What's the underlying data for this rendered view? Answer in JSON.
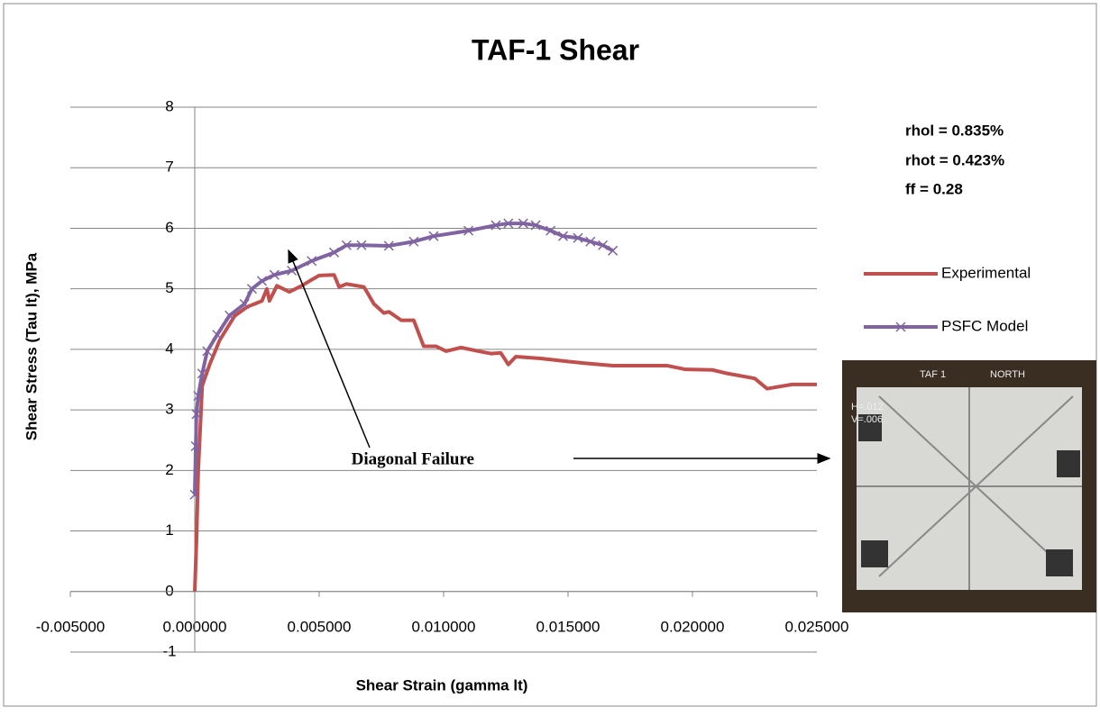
{
  "chart_data": {
    "type": "line",
    "title": "TAF-1  Shear",
    "x_label": "Shear Strain (gamma lt)",
    "y_label": "Shear Stress (Tau lt), MPa",
    "xlim": [
      -0.005,
      0.025
    ],
    "ylim": [
      -1,
      8
    ],
    "xticks": [
      {
        "value": -0.005,
        "label": "-0.005000"
      },
      {
        "value": 0,
        "label": "0.000000"
      },
      {
        "value": 0.005,
        "label": "0.005000"
      },
      {
        "value": 0.01,
        "label": "0.010000"
      },
      {
        "value": 0.015,
        "label": "0.015000"
      },
      {
        "value": 0.02,
        "label": "0.020000"
      },
      {
        "value": 0.025,
        "label": "0.025000"
      }
    ],
    "yticks": [
      -1,
      0,
      1,
      2,
      3,
      4,
      5,
      6,
      7,
      8
    ],
    "grid": true,
    "legend": "right",
    "series": [
      {
        "name": "Experimental",
        "color": "#c0504d",
        "marker": "none",
        "x": [
          0,
          7e-05,
          0.00014,
          0.0003,
          0.0006,
          0.001,
          0.0016,
          0.0021,
          0.0024,
          0.0027,
          0.0029,
          0.003,
          0.0033,
          0.0038,
          0.0043,
          0.0047,
          0.005,
          0.0056,
          0.0058,
          0.0061,
          0.0068,
          0.0072,
          0.0076,
          0.0078,
          0.0083,
          0.0088,
          0.0092,
          0.0097,
          0.0101,
          0.0107,
          0.0114,
          0.0119,
          0.0123,
          0.0126,
          0.0129,
          0.0139,
          0.015,
          0.0157,
          0.0168,
          0.019,
          0.0197,
          0.0208,
          0.0213,
          0.0225,
          0.023,
          0.024,
          0.025
        ],
        "values": [
          0,
          0.85,
          2.0,
          3.4,
          3.75,
          4.15,
          4.55,
          4.7,
          4.75,
          4.8,
          5.0,
          4.8,
          5.05,
          4.95,
          5.05,
          5.15,
          5.22,
          5.23,
          5.03,
          5.08,
          5.03,
          4.75,
          4.6,
          4.62,
          4.48,
          4.48,
          4.05,
          4.05,
          3.97,
          4.03,
          3.97,
          3.93,
          3.94,
          3.75,
          3.88,
          3.85,
          3.8,
          3.77,
          3.73,
          3.73,
          3.67,
          3.66,
          3.61,
          3.52,
          3.35,
          3.42,
          3.42
        ]
      },
      {
        "name": "PSFC Model",
        "color": "#8064a2",
        "marker": "x",
        "x": [
          0,
          4e-05,
          7e-05,
          0.00014,
          0.0003,
          0.0005,
          0.0009,
          0.0014,
          0.002,
          0.0023,
          0.0027,
          0.0032,
          0.0039,
          0.0047,
          0.0056,
          0.0061,
          0.0067,
          0.0078,
          0.0088,
          0.0096,
          0.011,
          0.0121,
          0.0126,
          0.0132,
          0.0137,
          0.0143,
          0.0148,
          0.0154,
          0.0159,
          0.0164,
          0.0168
        ],
        "values": [
          1.6,
          2.4,
          2.93,
          3.23,
          3.6,
          3.97,
          4.24,
          4.56,
          4.75,
          5.0,
          5.13,
          5.23,
          5.3,
          5.46,
          5.6,
          5.72,
          5.72,
          5.71,
          5.78,
          5.87,
          5.96,
          6.05,
          6.08,
          6.08,
          6.05,
          5.96,
          5.87,
          5.84,
          5.78,
          5.72,
          5.63
        ]
      }
    ],
    "annotations": [
      "rhol = 0.835%",
      "rhot = 0.423%",
      "ff = 0.28",
      "Diagonal Failure"
    ],
    "photo_texts": [
      "TAF 1",
      "NORTH",
      "H=.012",
      "V=.006"
    ]
  }
}
